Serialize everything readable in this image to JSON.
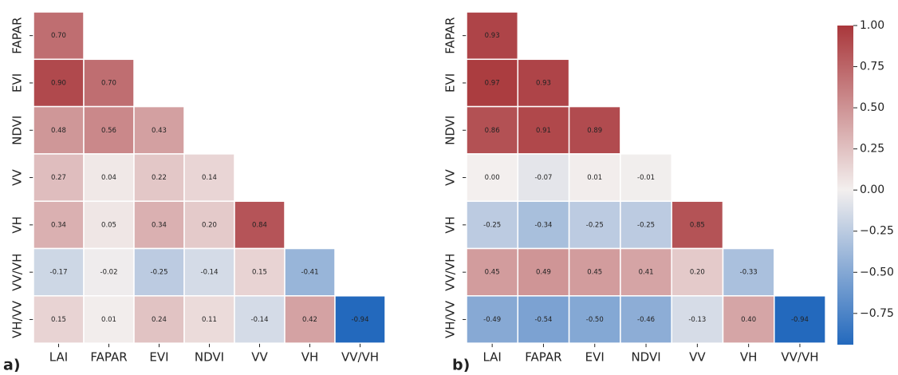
{
  "chart_data": [
    {
      "type": "heatmap",
      "panel_label": "a)",
      "x_categories": [
        "LAI",
        "FAPAR",
        "EVI",
        "NDVI",
        "VV",
        "VH",
        "VV/VH"
      ],
      "y_categories": [
        "FAPAR",
        "EVI",
        "NDVI",
        "VV",
        "VH",
        "VV/VH",
        "VH/VV"
      ],
      "values": [
        [
          0.7,
          null,
          null,
          null,
          null,
          null,
          null
        ],
        [
          0.9,
          0.7,
          null,
          null,
          null,
          null,
          null
        ],
        [
          0.48,
          0.56,
          0.43,
          null,
          null,
          null,
          null
        ],
        [
          0.27,
          0.04,
          0.22,
          0.14,
          null,
          null,
          null
        ],
        [
          0.34,
          0.05,
          0.34,
          0.2,
          0.84,
          null,
          null
        ],
        [
          -0.17,
          -0.02,
          -0.25,
          -0.14,
          0.15,
          -0.41,
          null
        ],
        [
          0.15,
          0.01,
          0.24,
          0.11,
          -0.14,
          0.42,
          -0.94
        ]
      ],
      "value_labels": [
        [
          "0.70",
          null,
          null,
          null,
          null,
          null,
          null
        ],
        [
          "0.90",
          "0.70",
          null,
          null,
          null,
          null,
          null
        ],
        [
          "0.48",
          "0.56",
          "0.43",
          null,
          null,
          null,
          null
        ],
        [
          "0.27",
          "0.04",
          "0.22",
          "0.14",
          null,
          null,
          null
        ],
        [
          "0.34",
          "0.05",
          "0.34",
          "0.20",
          "0.84",
          null,
          null
        ],
        [
          "-0.17",
          "-0.02",
          "-0.25",
          "-0.14",
          "0.15",
          "-0.41",
          null
        ],
        [
          "0.15",
          "0.01",
          "0.24",
          "0.11",
          "-0.14",
          "0.42",
          "-0.94"
        ]
      ],
      "clim": [
        -0.94,
        1.0
      ],
      "cmap": [
        "#2369bd",
        "#f3efee",
        "#a9373b"
      ]
    },
    {
      "type": "heatmap",
      "panel_label": "b)",
      "x_categories": [
        "LAI",
        "FAPAR",
        "EVI",
        "NDVI",
        "VV",
        "VH",
        "VV/VH"
      ],
      "y_categories": [
        "FAPAR",
        "EVI",
        "NDVI",
        "VV",
        "VH",
        "VV/VH",
        "VH/VV"
      ],
      "values": [
        [
          0.93,
          null,
          null,
          null,
          null,
          null,
          null
        ],
        [
          0.97,
          0.93,
          null,
          null,
          null,
          null,
          null
        ],
        [
          0.86,
          0.91,
          0.89,
          null,
          null,
          null,
          null
        ],
        [
          0.0,
          -0.07,
          0.01,
          -0.01,
          null,
          null,
          null
        ],
        [
          -0.25,
          -0.34,
          -0.25,
          -0.25,
          0.85,
          null,
          null
        ],
        [
          0.45,
          0.49,
          0.45,
          0.41,
          0.2,
          -0.33,
          null
        ],
        [
          -0.49,
          -0.54,
          -0.5,
          -0.46,
          -0.13,
          0.4,
          -0.94
        ]
      ],
      "value_labels": [
        [
          "0.93",
          null,
          null,
          null,
          null,
          null,
          null
        ],
        [
          "0.97",
          "0.93",
          null,
          null,
          null,
          null,
          null
        ],
        [
          "0.86",
          "0.91",
          "0.89",
          null,
          null,
          null,
          null
        ],
        [
          "0.00",
          "-0.07",
          "0.01",
          "-0.01",
          null,
          null,
          null
        ],
        [
          "-0.25",
          "-0.34",
          "-0.25",
          "-0.25",
          "0.85",
          null,
          null
        ],
        [
          "0.45",
          "0.49",
          "0.45",
          "0.41",
          "0.20",
          "-0.33",
          null
        ],
        [
          "-0.49",
          "-0.54",
          "-0.50",
          "-0.46",
          "-0.13",
          "0.40",
          "-0.94"
        ]
      ],
      "clim": [
        -0.94,
        1.0
      ],
      "cmap": [
        "#2369bd",
        "#f3efee",
        "#a9373b"
      ],
      "colorbar_ticks": [
        {
          "value": 1.0,
          "label": "1.00"
        },
        {
          "value": 0.75,
          "label": "0.75"
        },
        {
          "value": 0.5,
          "label": "0.50"
        },
        {
          "value": 0.25,
          "label": "0.25"
        },
        {
          "value": 0,
          "label": "0.00"
        },
        {
          "value": -0.25,
          "label": "−0.25"
        },
        {
          "value": -0.5,
          "label": "−0.50"
        },
        {
          "value": -0.75,
          "label": "−0.75"
        }
      ]
    }
  ]
}
